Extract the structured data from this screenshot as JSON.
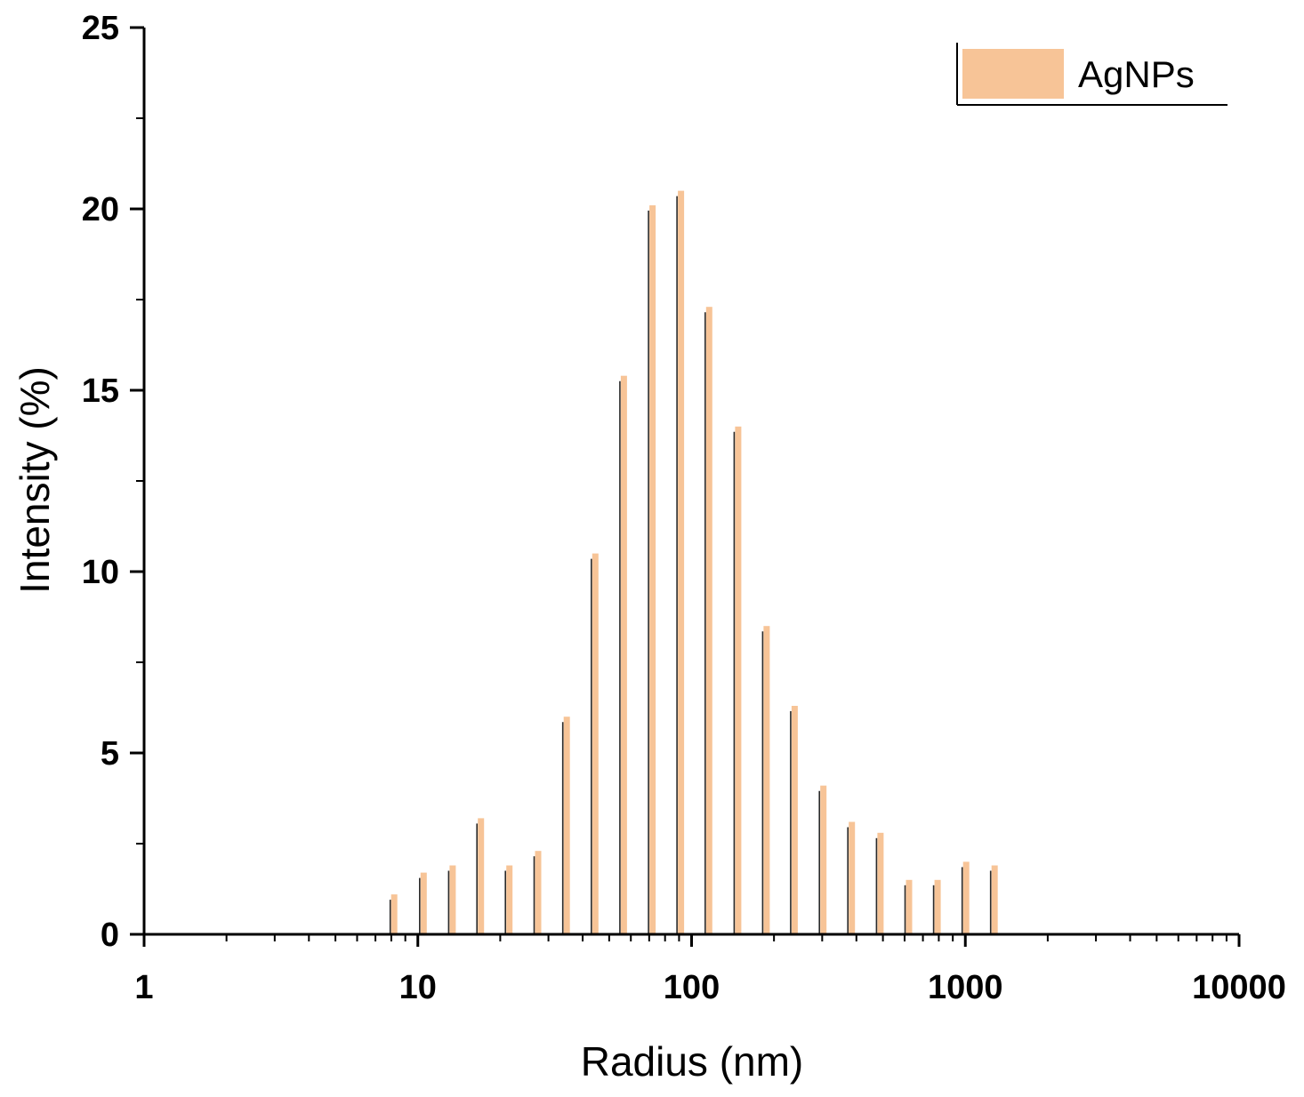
{
  "chart_data": {
    "type": "bar",
    "title": "",
    "xlabel": "Radius (nm)",
    "ylabel": "Intensity (%)",
    "x_scale": "log",
    "xlim": [
      1,
      10000
    ],
    "ylim": [
      0,
      25
    ],
    "x_ticks": [
      "1",
      "10",
      "100",
      "1000",
      "10000"
    ],
    "y_ticks": [
      "0",
      "5",
      "10",
      "15",
      "20",
      "25"
    ],
    "grid": false,
    "legend_position": "top-right",
    "series": [
      {
        "name": "AgNPs",
        "color": "#f7c497",
        "x": [
          8.2,
          10.5,
          13.4,
          17,
          21.6,
          27.5,
          35,
          44.5,
          56.6,
          72,
          91.5,
          116,
          148,
          188,
          238,
          303,
          385,
          490,
          623,
          792,
          1007,
          1280
        ],
        "values": [
          1.1,
          1.7,
          1.9,
          3.2,
          1.9,
          2.3,
          6.0,
          10.5,
          15.4,
          20.1,
          20.5,
          17.3,
          14.0,
          8.5,
          6.3,
          4.1,
          3.1,
          2.8,
          1.5,
          1.5,
          2.0,
          1.9
        ]
      }
    ]
  }
}
